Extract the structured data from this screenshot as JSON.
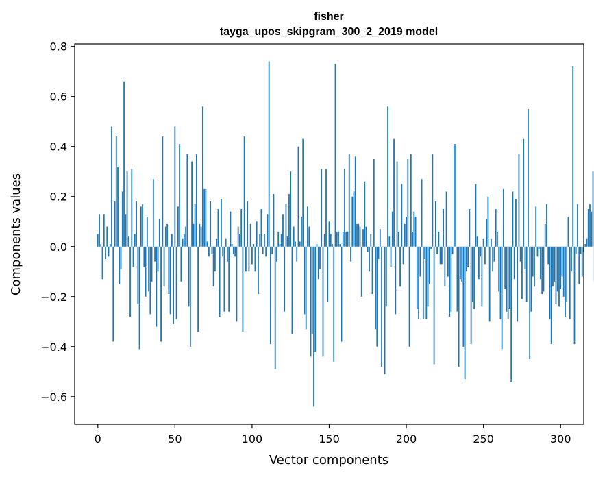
{
  "chart_data": {
    "type": "bar",
    "title": "fisher",
    "subtitle": "tayga_upos_skipgram_300_2_2019 model",
    "xlabel": "Vector components",
    "ylabel": "Components values",
    "xlim": [
      -15,
      315
    ],
    "ylim": [
      -0.71,
      0.81
    ],
    "xticks": [
      0,
      50,
      100,
      150,
      200,
      250,
      300
    ],
    "xtick_labels": [
      "0",
      "50",
      "100",
      "150",
      "200",
      "250",
      "300"
    ],
    "yticks": [
      -0.6,
      -0.4,
      -0.2,
      0.0,
      0.2,
      0.4,
      0.6,
      0.8
    ],
    "ytick_labels": [
      "−0.6",
      "−0.4",
      "−0.2",
      "0.0",
      "0.2",
      "0.4",
      "0.6",
      "0.8"
    ],
    "bar_color": "#1f77b4",
    "grid": false,
    "legend": "none",
    "values": [
      0.05,
      0.13,
      0.01,
      -0.13,
      0.13,
      -0.05,
      0.08,
      -0.04,
      0.01,
      0.48,
      -0.38,
      0.18,
      0.44,
      0.32,
      -0.15,
      -0.09,
      0.22,
      0.66,
      0.13,
      0.3,
      0.04,
      -0.28,
      0.31,
      -0.08,
      0.05,
      0.18,
      -0.23,
      -0.41,
      0.16,
      0.17,
      -0.08,
      -0.2,
      0.12,
      -0.18,
      -0.27,
      -0.14,
      0.27,
      -0.06,
      -0.32,
      -0.1,
      0.11,
      -0.38,
      0.44,
      -0.16,
      0.08,
      0.09,
      -0.19,
      -0.27,
      0.05,
      -0.31,
      0.48,
      -0.29,
      0.16,
      0.41,
      -0.14,
      0.03,
      0.05,
      0.08,
      0.37,
      -0.24,
      -0.4,
      0.34,
      0.09,
      0.17,
      0.37,
      -0.34,
      0.09,
      0.08,
      0.56,
      0.23,
      0.23,
      0.02,
      -0.04,
      0.18,
      -0.03,
      -0.16,
      -0.1,
      0.03,
      0.15,
      -0.28,
      0.19,
      -0.04,
      -0.26,
      0.03,
      -0.06,
      -0.26,
      0.14,
      0.01,
      -0.03,
      -0.04,
      -0.3,
      0.08,
      0.05,
      0.15,
      -0.34,
      0.44,
      -0.1,
      0.18,
      -0.1,
      0.09,
      -0.07,
      0.01,
      -0.1,
      0.1,
      -0.19,
      0.05,
      0.15,
      -0.03,
      0.05,
      -0.04,
      0.13,
      0.74,
      -0.39,
      -0.03,
      0.21,
      -0.49,
      -0.06,
      0.06,
      0.01,
      0.05,
      0.13,
      -0.26,
      0.17,
      0.04,
      0.21,
      0.3,
      -0.35,
      0.08,
      0.02,
      -0.06,
      0.4,
      0.02,
      0.12,
      0.43,
      -0.27,
      -0.33,
      0.16,
      0.08,
      -0.44,
      -0.35,
      -0.64,
      -0.42,
      0.01,
      -0.13,
      -0.09,
      0.31,
      -0.44,
      0.05,
      0.31,
      -0.22,
      0.1,
      0.05,
      0.01,
      -0.46,
      0.73,
      0.06,
      0.06,
      0.01,
      -0.38,
      0.06,
      0.31,
      0.06,
      0.06,
      0.37,
      -0.06,
      0.2,
      0.22,
      0.36,
      0.09,
      0.09,
      0.08,
      -0.2,
      0.07,
      0.26,
      0.08,
      -0.02,
      -0.1,
      0.05,
      -0.19,
      0.35,
      -0.33,
      -0.4,
      -0.05,
      0.07,
      -0.48,
      0.0,
      -0.51,
      -0.24,
      0.56,
      0.04,
      -0.08,
      0.14,
      0.43,
      -0.27,
      0.34,
      0.06,
      -0.16,
      0.25,
      -0.07,
      0.09,
      0.12,
      0.35,
      -0.4,
      0.37,
      0.06,
      0.14,
      0.12,
      -0.25,
      -0.29,
      -0.12,
      0.27,
      -0.29,
      -0.05,
      -0.29,
      -0.24,
      -0.15,
      -0.01,
      0.37,
      -0.47,
      0.18,
      -0.03,
      0.06,
      -0.07,
      -0.07,
      0.15,
      -0.16,
      0.22,
      -0.12,
      -0.28,
      -0.26,
      -0.03,
      0.41,
      0.41,
      -0.26,
      -0.48,
      -0.13,
      -0.14,
      -0.4,
      -0.53,
      -0.1,
      -0.08,
      0.15,
      -0.39,
      -0.22,
      -0.25,
      0.25,
      0.04,
      -0.13,
      -0.04,
      -0.24,
      0.03,
      -0.07,
      0.11,
      0.2,
      -0.3,
      0.03,
      -0.1,
      -0.06,
      0.15,
      0.06,
      -0.18,
      -0.29,
      -0.41,
      0.23,
      -0.17,
      -0.26,
      -0.29,
      -0.25,
      -0.54,
      0.22,
      -0.13,
      0.19,
      -0.3,
      0.37,
      -0.06,
      -0.21,
      0.43,
      -0.09,
      -0.22,
      0.55,
      -0.45,
      -0.26,
      -0.12,
      -0.16,
      0.16,
      -0.04,
      -0.01,
      -0.13,
      -0.19,
      -0.18,
      0.09,
      0.17,
      -0.07,
      -0.29,
      -0.39,
      -0.16,
      -0.14,
      -0.23,
      -0.18,
      -0.24,
      -0.17,
      -0.12,
      -0.2,
      -0.28,
      -0.22,
      0.12,
      -0.29,
      -0.1,
      0.72,
      -0.39,
      -0.03,
      0.17,
      -0.15,
      -0.03,
      -0.12,
      -0.02,
      0.01,
      0.03,
      0.15,
      0.17,
      0.14,
      0.3,
      -0.14
    ]
  }
}
